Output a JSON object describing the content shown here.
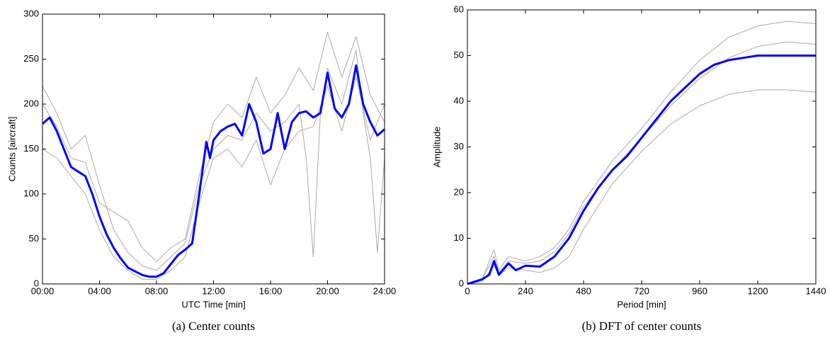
{
  "chart_data": [
    {
      "type": "line",
      "caption": "(a) Center counts",
      "xlabel": "UTC Time [min]",
      "ylabel": "Counts [aircraft]",
      "xlim": [
        0,
        1440
      ],
      "ylim": [
        0,
        300
      ],
      "xticks": [
        {
          "value": 0,
          "label": "00:00"
        },
        {
          "value": 240,
          "label": "04:00"
        },
        {
          "value": 480,
          "label": "08:00"
        },
        {
          "value": 720,
          "label": "12:00"
        },
        {
          "value": 960,
          "label": "16:00"
        },
        {
          "value": 1200,
          "label": "20:00"
        },
        {
          "value": 1440,
          "label": "24:00"
        }
      ],
      "yticks": [
        0,
        50,
        100,
        150,
        200,
        250,
        300
      ],
      "series": [
        {
          "color": "#aaaaaa",
          "width": 1,
          "x": [
            0,
            60,
            120,
            180,
            240,
            300,
            360,
            420,
            480,
            540,
            600,
            660,
            720,
            780,
            840,
            900,
            960,
            1020,
            1080,
            1110,
            1140,
            1170,
            1200,
            1260,
            1320,
            1350,
            1380,
            1410,
            1440
          ],
          "values": [
            220,
            190,
            150,
            165,
            110,
            60,
            35,
            20,
            15,
            30,
            45,
            110,
            150,
            165,
            160,
            190,
            170,
            180,
            200,
            140,
            30,
            190,
            240,
            200,
            260,
            190,
            140,
            35,
            140
          ]
        },
        {
          "color": "#aaaaaa",
          "width": 1,
          "x": [
            0,
            60,
            120,
            180,
            240,
            300,
            360,
            420,
            480,
            540,
            600,
            660,
            720,
            780,
            840,
            900,
            960,
            1020,
            1080,
            1140,
            1200,
            1260,
            1320,
            1380,
            1440
          ],
          "values": [
            150,
            140,
            120,
            100,
            60,
            30,
            15,
            5,
            5,
            15,
            30,
            90,
            140,
            150,
            130,
            160,
            110,
            150,
            170,
            175,
            220,
            170,
            230,
            160,
            200
          ]
        },
        {
          "color": "#aaaaaa",
          "width": 1,
          "x": [
            0,
            60,
            120,
            180,
            240,
            300,
            360,
            420,
            480,
            540,
            600,
            660,
            720,
            780,
            840,
            900,
            960,
            1020,
            1080,
            1140,
            1200,
            1260,
            1320,
            1380,
            1440
          ],
          "values": [
            200,
            175,
            140,
            135,
            90,
            80,
            70,
            40,
            25,
            40,
            50,
            120,
            180,
            200,
            185,
            230,
            190,
            210,
            240,
            215,
            280,
            230,
            275,
            210,
            180
          ]
        },
        {
          "color": "#0000ff",
          "width": 3,
          "x": [
            0,
            30,
            60,
            90,
            120,
            150,
            180,
            210,
            240,
            270,
            300,
            330,
            360,
            390,
            420,
            450,
            480,
            510,
            540,
            570,
            600,
            630,
            660,
            690,
            705,
            720,
            750,
            780,
            810,
            840,
            870,
            900,
            930,
            960,
            990,
            1020,
            1050,
            1080,
            1110,
            1140,
            1170,
            1200,
            1230,
            1260,
            1290,
            1320,
            1350,
            1380,
            1410,
            1440
          ],
          "values": [
            178,
            185,
            170,
            150,
            130,
            125,
            120,
            100,
            75,
            55,
            40,
            28,
            18,
            14,
            10,
            8,
            8,
            12,
            22,
            32,
            38,
            45,
            100,
            158,
            140,
            160,
            170,
            175,
            178,
            165,
            200,
            180,
            145,
            150,
            190,
            150,
            180,
            190,
            192,
            185,
            190,
            235,
            195,
            185,
            200,
            243,
            200,
            180,
            165,
            172
          ]
        }
      ]
    },
    {
      "type": "line",
      "caption": "(b) DFT of center counts",
      "xlabel": "Period [min]",
      "ylabel": "Amplitude",
      "xlim": [
        0,
        1440
      ],
      "ylim": [
        0,
        60
      ],
      "xticks": [
        0,
        240,
        480,
        720,
        960,
        1200,
        1440
      ],
      "yticks": [
        0,
        10,
        20,
        30,
        40,
        50,
        60
      ],
      "series": [
        {
          "color": "#aaaaaa",
          "width": 1,
          "x": [
            0,
            60,
            110,
            130,
            170,
            240,
            300,
            360,
            420,
            480,
            600,
            720,
            840,
            960,
            1080,
            1200,
            1320,
            1440
          ],
          "values": [
            0,
            1,
            7.5,
            3,
            6,
            5,
            6,
            8,
            12,
            18,
            27,
            34,
            42,
            49,
            54,
            56.5,
            57.5,
            57
          ]
        },
        {
          "color": "#aaaaaa",
          "width": 1,
          "x": [
            0,
            60,
            110,
            130,
            170,
            240,
            300,
            360,
            420,
            480,
            600,
            720,
            840,
            960,
            1080,
            1200,
            1320,
            1440
          ],
          "values": [
            0,
            0.5,
            4,
            2,
            3.5,
            3,
            2.5,
            3.5,
            6,
            12,
            22,
            29,
            35,
            39,
            41.5,
            42.5,
            42.5,
            42
          ]
        },
        {
          "color": "#aaaaaa",
          "width": 1,
          "x": [
            0,
            60,
            110,
            130,
            170,
            240,
            300,
            360,
            420,
            480,
            600,
            720,
            840,
            960,
            1080,
            1200,
            1320,
            1440
          ],
          "values": [
            0,
            1,
            6,
            2.5,
            5,
            4.5,
            5,
            7,
            11,
            17,
            25,
            32,
            39,
            45,
            49.5,
            52,
            53,
            52.5
          ]
        },
        {
          "color": "#0000ff",
          "width": 3,
          "x": [
            0,
            60,
            90,
            110,
            130,
            170,
            200,
            240,
            300,
            360,
            420,
            480,
            540,
            600,
            660,
            720,
            780,
            840,
            900,
            960,
            1020,
            1080,
            1140,
            1200,
            1260,
            1320,
            1380,
            1440
          ],
          "values": [
            0,
            1,
            2,
            5,
            2,
            4.5,
            3,
            4,
            3.8,
            6,
            10,
            16,
            21,
            25,
            28,
            32,
            36,
            40,
            43,
            46,
            48,
            49,
            49.5,
            50,
            50,
            50,
            50,
            50
          ]
        }
      ]
    }
  ]
}
